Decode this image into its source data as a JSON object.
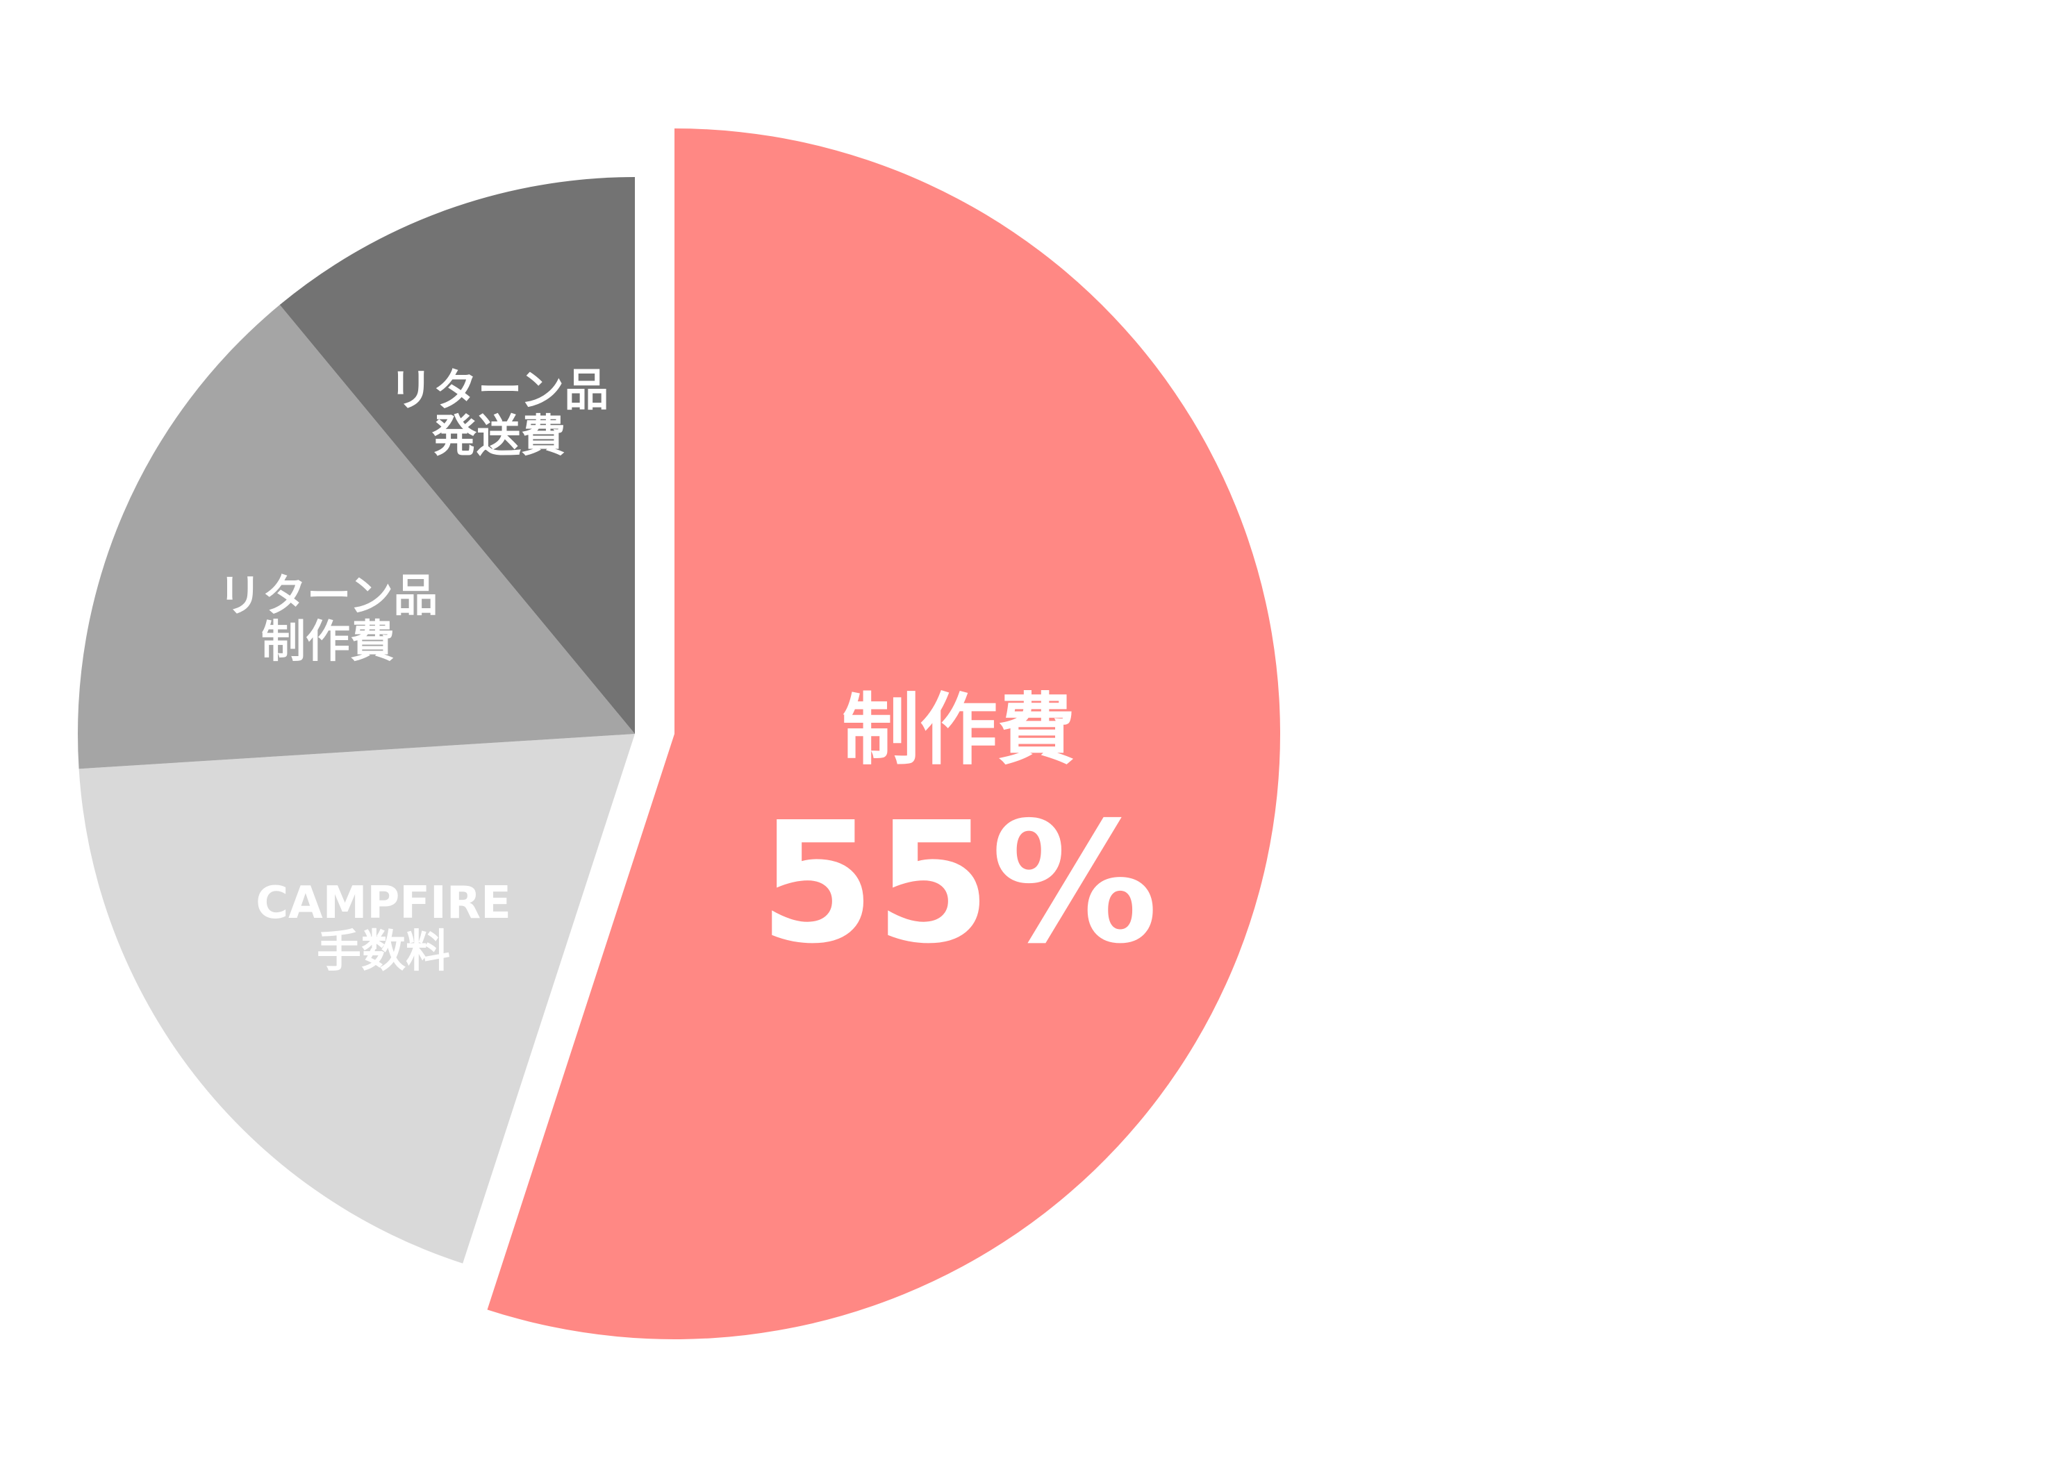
{
  "chart_data": {
    "type": "pie",
    "start_angle": "12 o'clock, clockwise",
    "exploded_slice": "制作費",
    "slices": [
      {
        "label_lines": [
          "制作費"
        ],
        "value": 55,
        "value_label": "55%",
        "color": "#ff8884"
      },
      {
        "label_lines": [
          "CAMPFIRE",
          "手数料"
        ],
        "value": 19,
        "color": "#d9d9d9"
      },
      {
        "label_lines": [
          "リターン品",
          "制作費"
        ],
        "value": 15,
        "color": "#a5a5a5"
      },
      {
        "label_lines": [
          "リターン品",
          "発送費"
        ],
        "value": 11,
        "color": "#737373"
      }
    ]
  }
}
